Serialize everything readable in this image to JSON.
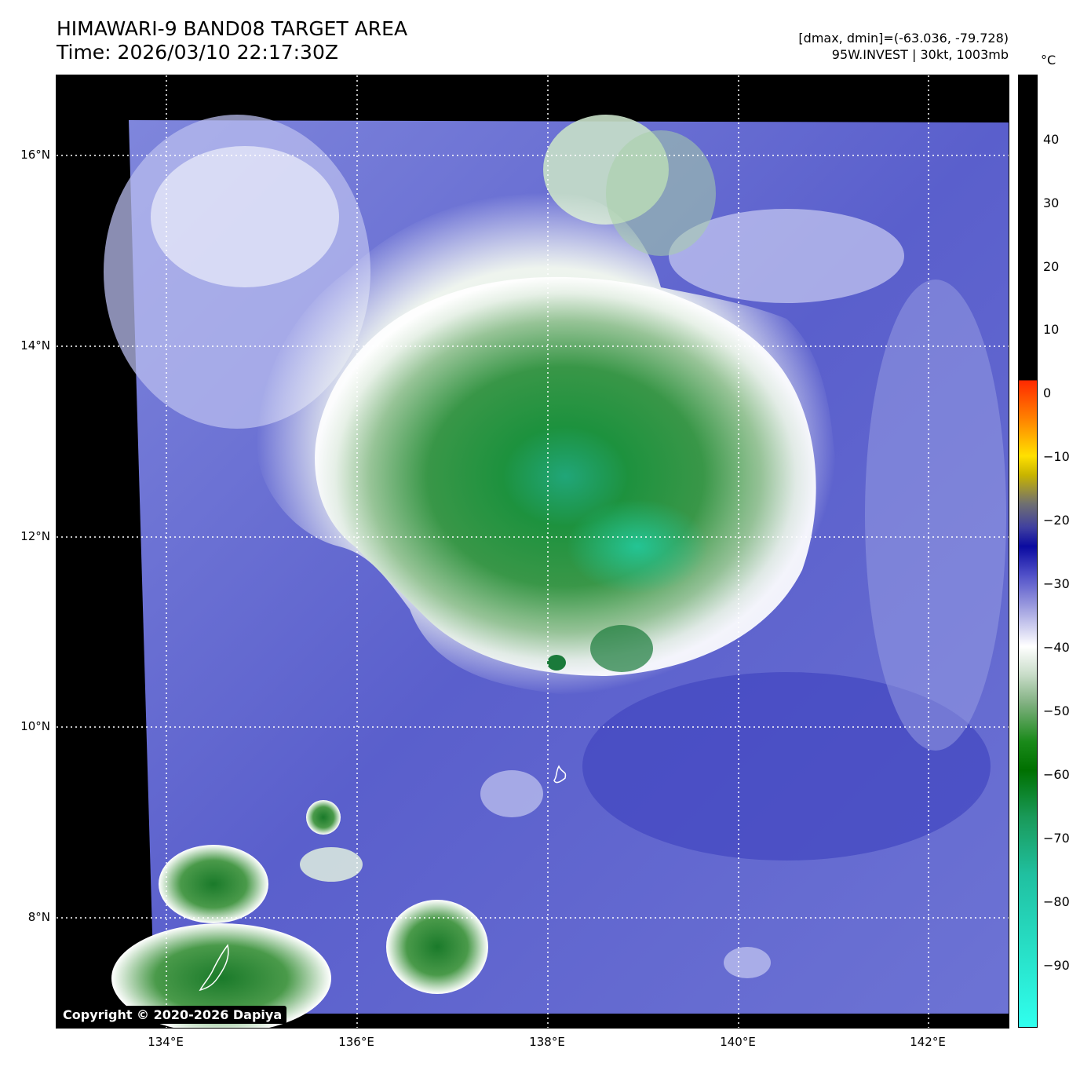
{
  "header": {
    "title_line1": "HIMAWARI-9 BAND08 TARGET AREA",
    "title_line2": "Time: 2026/03/10 22:17:30Z",
    "info_line1": "[dmax, dmin]=(-63.036, -79.728)",
    "info_line2": "95W.INVEST | 30kt, 1003mb"
  },
  "axes": {
    "lat_labels": [
      "16°N",
      "14°N",
      "12°N",
      "10°N",
      "8°N"
    ],
    "lon_labels": [
      "134°E",
      "136°E",
      "138°E",
      "140°E",
      "142°E"
    ]
  },
  "colorbar": {
    "unit": "°C",
    "ticks": [
      "40",
      "30",
      "20",
      "10",
      "0",
      "−10",
      "−20",
      "−30",
      "−40",
      "−50",
      "−60",
      "−70",
      "−80",
      "−90"
    ],
    "colors": {
      "warm": "#000000",
      "red": "#ff2a00",
      "yellow": "#ffe000",
      "blue": "#0a0aa0",
      "white": "#ffffff",
      "green": "#007000",
      "cyan": "#30ffee"
    }
  },
  "footer": {
    "copyright": "Copyright © 2020-2026 Dapiya"
  }
}
